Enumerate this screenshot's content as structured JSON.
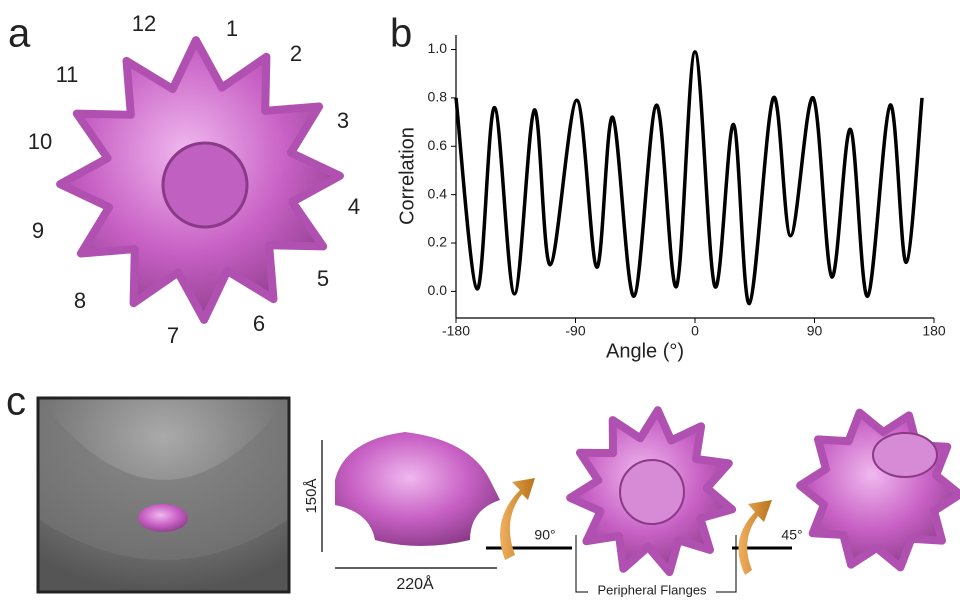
{
  "panel_a": {
    "label": "a",
    "numbers": [
      "12",
      "1",
      "2",
      "3",
      "4",
      "5",
      "6",
      "7",
      "8",
      "9",
      "10",
      "11"
    ]
  },
  "chart_data": {
    "type": "line",
    "label": "b",
    "xlabel": "Angle (°)",
    "ylabel": "Correlation",
    "color": "#000000",
    "x": [
      -180,
      -164,
      -151,
      -136,
      -121,
      -109,
      -89,
      -74,
      -62,
      -46,
      -29,
      -14,
      0,
      15,
      29,
      41,
      59,
      72,
      89,
      103,
      117,
      130,
      147,
      159,
      171
    ],
    "values": [
      0.8,
      0.01,
      0.76,
      -0.01,
      0.75,
      0.11,
      0.79,
      0.1,
      0.72,
      -0.02,
      0.77,
      0.02,
      0.99,
      0.02,
      0.69,
      -0.05,
      0.8,
      0.23,
      0.8,
      0.06,
      0.67,
      -0.02,
      0.77,
      0.12,
      0.8
    ],
    "xlim": [
      -180,
      180
    ],
    "ylim": [
      -0.11,
      1.06
    ],
    "xticks": [
      -180,
      -90,
      0,
      90,
      180
    ],
    "yticks": [
      {
        "value": 0,
        "label": "0.0"
      },
      0.2,
      0.4,
      0.6,
      0.8,
      {
        "value": 1,
        "label": "1.0"
      }
    ]
  },
  "panel_c": {
    "label": "c",
    "height": "150Å",
    "width": "220Å",
    "rotation_1": "90°",
    "rotation_2": "45°",
    "flanges": "Peripheral Flanges"
  }
}
